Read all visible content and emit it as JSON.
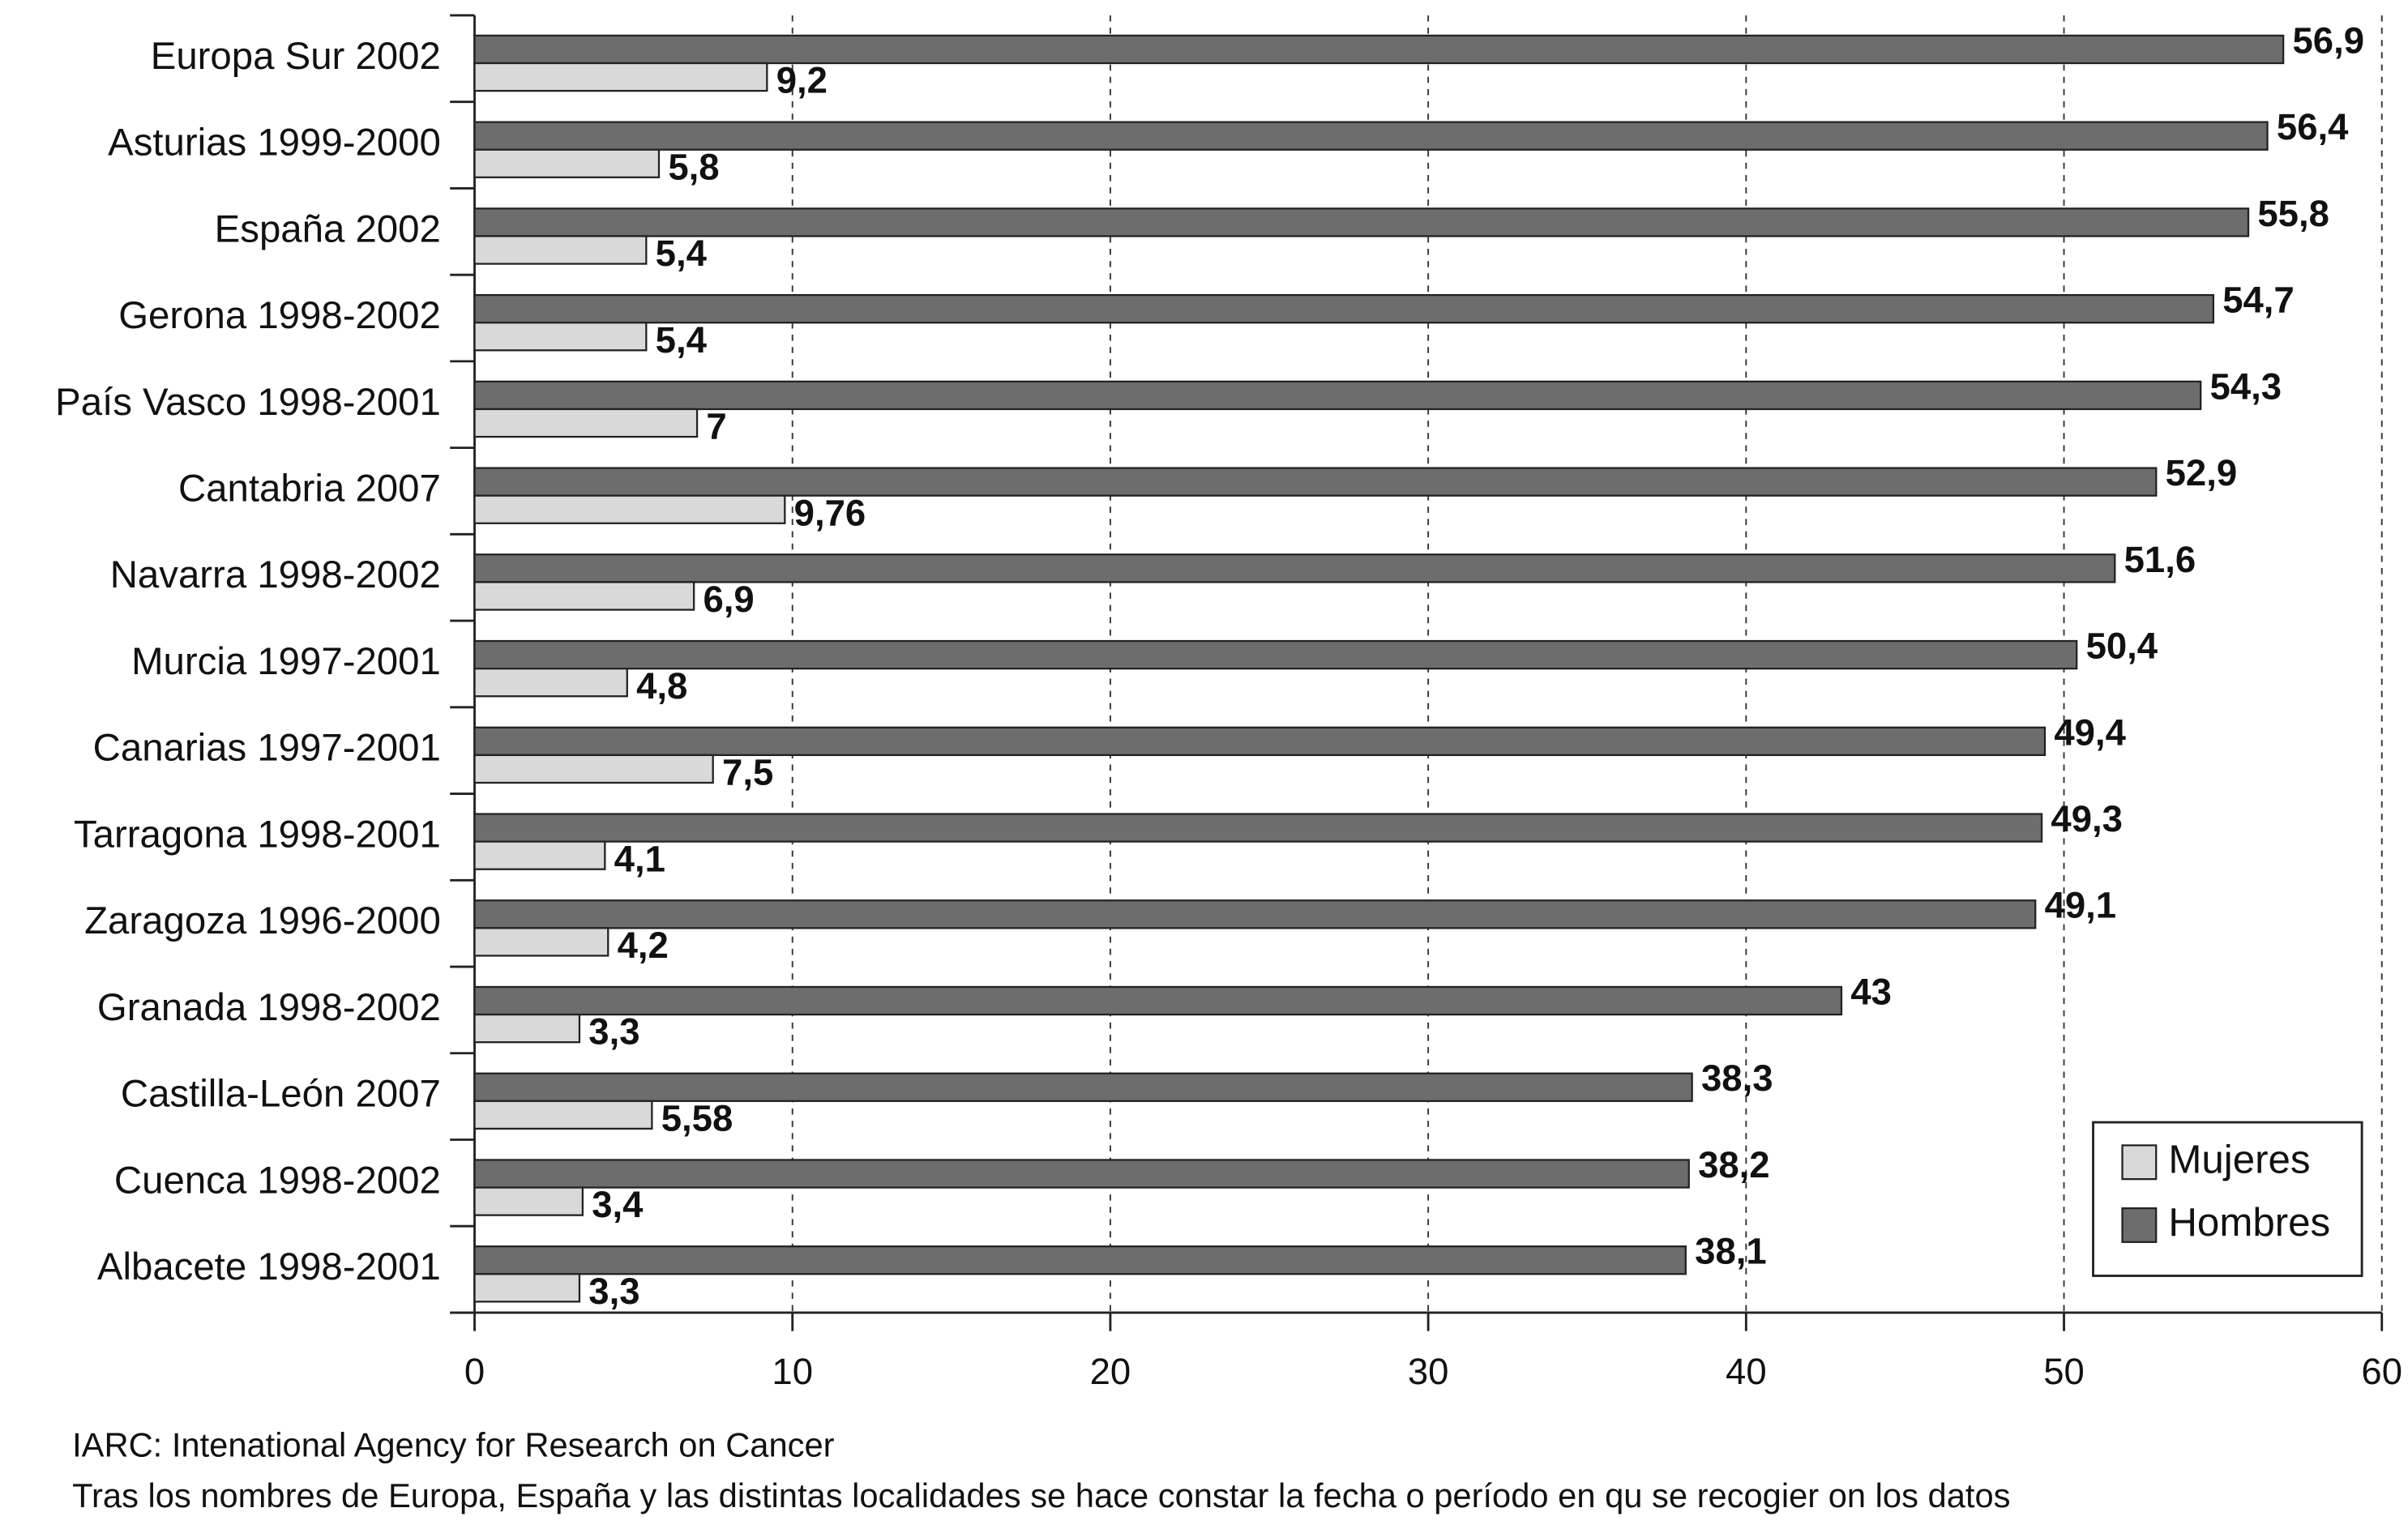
{
  "chart_data": {
    "type": "hbar",
    "categories": [
      "Europa Sur 2002",
      "Asturias 1999-2000",
      "España 2002",
      "Gerona 1998-2002",
      "País Vasco 1998-2001",
      "Cantabria 2007",
      "Navarra 1998-2002",
      "Murcia 1997-2001",
      "Canarias 1997-2001",
      "Tarragona 1998-2001",
      "Zaragoza 1996-2000",
      "Granada 1998-2002",
      "Castilla-León 2007",
      "Cuenca 1998-2002",
      "Albacete 1998-2001"
    ],
    "series": [
      {
        "name": "Mujeres",
        "color": "#d9d9d9",
        "values": [
          9.2,
          5.8,
          5.4,
          5.4,
          7,
          9.76,
          6.9,
          4.8,
          7.5,
          4.1,
          4.2,
          3.3,
          5.58,
          3.4,
          3.3
        ],
        "value_labels": [
          "9,2",
          "5,8",
          "5,4",
          "5,4",
          "7",
          "9,76",
          "6,9",
          "4,8",
          "7,5",
          "4,1",
          "4,2",
          "3,3",
          "5,58",
          "3,4",
          "3,3"
        ]
      },
      {
        "name": "Hombres",
        "color": "#6d6d6d",
        "values": [
          56.9,
          56.4,
          55.8,
          54.7,
          54.3,
          52.9,
          51.6,
          50.4,
          49.4,
          49.3,
          49.1,
          43,
          38.3,
          38.2,
          38.1
        ],
        "value_labels": [
          "56,9",
          "56,4",
          "55,8",
          "54,7",
          "54,3",
          "52,9",
          "51,6",
          "50,4",
          "49,4",
          "49,3",
          "49,1",
          "43",
          "38,3",
          "38,2",
          "38,1"
        ]
      }
    ],
    "xlim": [
      0,
      60
    ],
    "xticks": [
      0,
      10,
      20,
      30,
      40,
      50,
      60
    ],
    "grid": true,
    "legend": "lower right",
    "notes": [
      "IARC: Intenational Agency for Research on Cancer",
      "Tras los nombres de Europa, España y las distintas localidades se hace constar la fecha o período en qu se recogier on los datos"
    ]
  }
}
